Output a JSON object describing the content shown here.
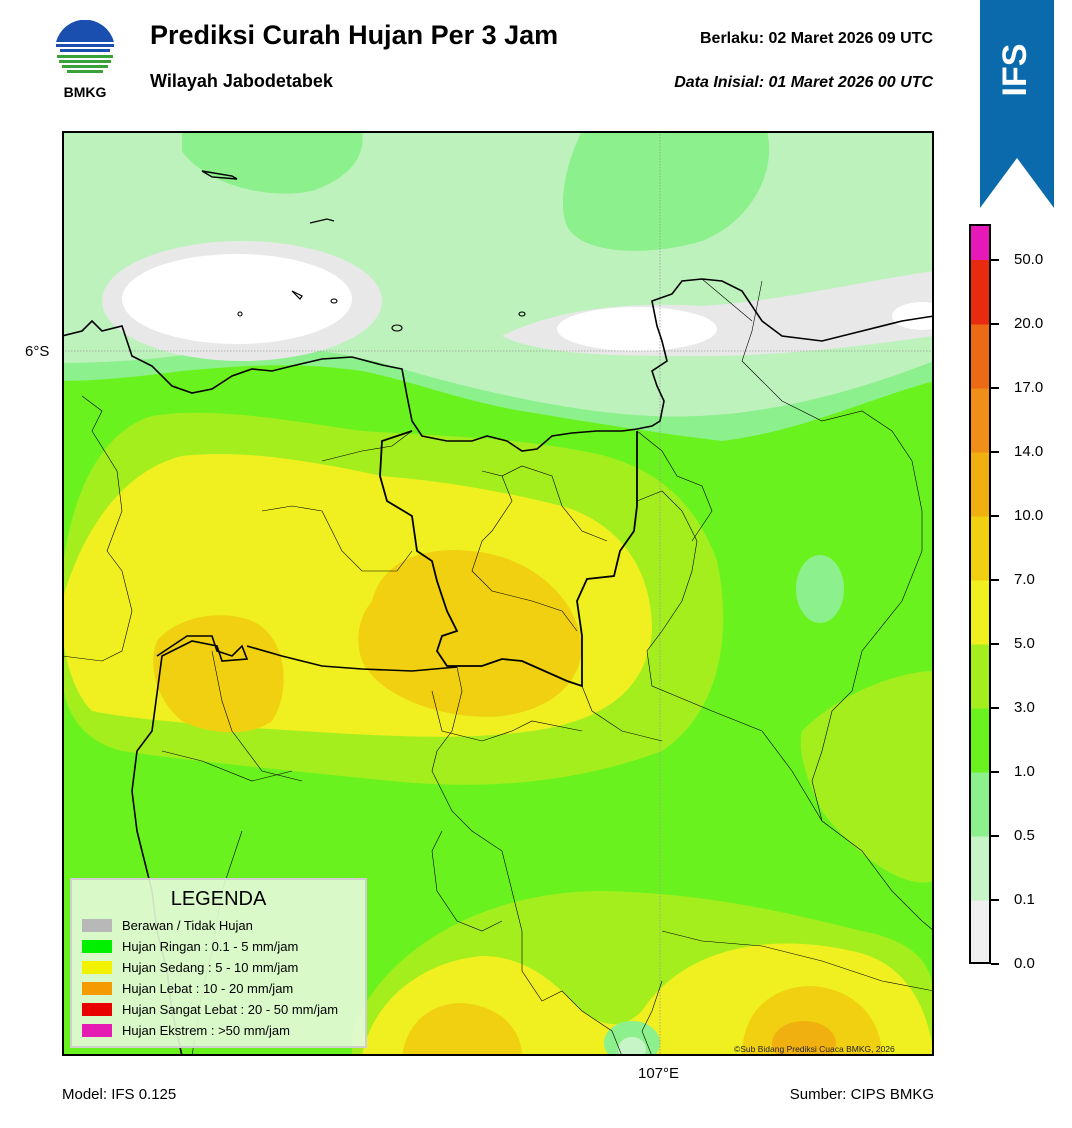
{
  "header": {
    "title": "Prediksi Curah Hujan Per 3 Jam",
    "subtitle": "Wilayah Jabodetabek",
    "valid": "Berlaku:  02 Maret 2026 09 UTC",
    "initial": "Data Inisial:  01 Maret 2026 00 UTC",
    "logo_text": "BMKG"
  },
  "badge": {
    "text": "IFS",
    "color": "#0a6aab"
  },
  "map": {
    "lat_label": "6°S",
    "lon_label": "107°E",
    "credit": "©Sub Bidang Prediksi Cuaca BMKG, 2026"
  },
  "legend": {
    "title": "LEGENDA",
    "items": [
      {
        "label": "Berawan / Tidak Hujan",
        "color": "#b8b8b8"
      },
      {
        "label": "Hujan Ringan : 0.1 - 5 mm/jam",
        "color": "#00f000"
      },
      {
        "label": "Hujan Sedang : 5 - 10 mm/jam",
        "color": "#f2f200"
      },
      {
        "label": "Hujan Lebat : 10 - 20 mm/jam",
        "color": "#f59a00"
      },
      {
        "label": "Hujan Sangat Lebat : 20 - 50 mm/jam",
        "color": "#e80000"
      },
      {
        "label": "Hujan Ekstrem : >50 mm/jam",
        "color": "#e61bb4"
      }
    ]
  },
  "colorbar": {
    "ticks": [
      "0.0",
      "0.1",
      "0.5",
      "1.0",
      "3.0",
      "5.0",
      "7.0",
      "10.0",
      "14.0",
      "17.0",
      "20.0",
      "50.0"
    ],
    "colors": [
      "#f0f0f0",
      "#c8f5c8",
      "#8cf08c",
      "#6af21e",
      "#a5ee1e",
      "#f0f020",
      "#f0d010",
      "#f0b010",
      "#ef8e18",
      "#ec6a14",
      "#e82a10",
      "#e618b8"
    ]
  },
  "footer": {
    "model": "Model: IFS 0.125",
    "source": "Sumber: CIPS BMKG"
  }
}
